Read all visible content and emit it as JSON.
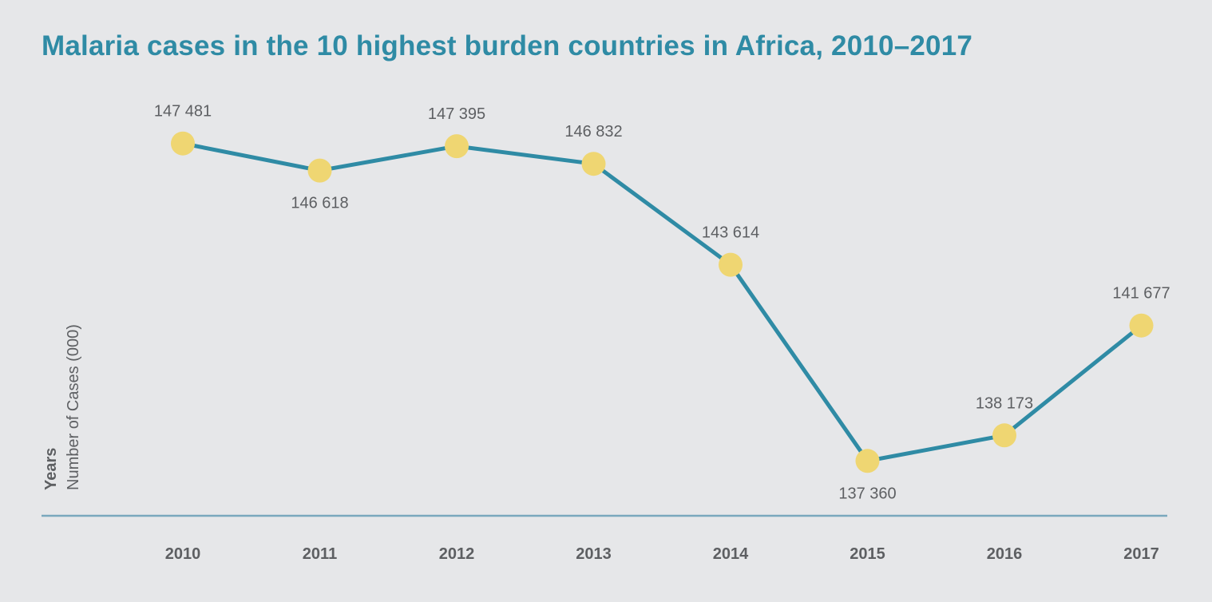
{
  "chart_data": {
    "type": "line",
    "title": "Malaria cases in the 10 highest burden countries in Africa, 2010–2017",
    "xlabel": "Years",
    "ylabel": "Number of Cases (000)",
    "categories": [
      "2010",
      "2011",
      "2012",
      "2013",
      "2014",
      "2015",
      "2016",
      "2017"
    ],
    "values": [
      147481,
      146618,
      147395,
      146832,
      143614,
      137360,
      138173,
      141677
    ],
    "data_labels": [
      "147 481",
      "146 618",
      "147 395",
      "146 832",
      "143 614",
      "137 360",
      "138 173",
      "141 677"
    ],
    "ylim": [
      135000,
      149000
    ],
    "grid": false,
    "legend": "none"
  },
  "colors": {
    "background": "#e6e7e9",
    "title": "#2f8ba5",
    "line": "#2f8ba5",
    "marker": "#efd672",
    "axis": "#7aa8bd",
    "text": "#5d5f62"
  }
}
